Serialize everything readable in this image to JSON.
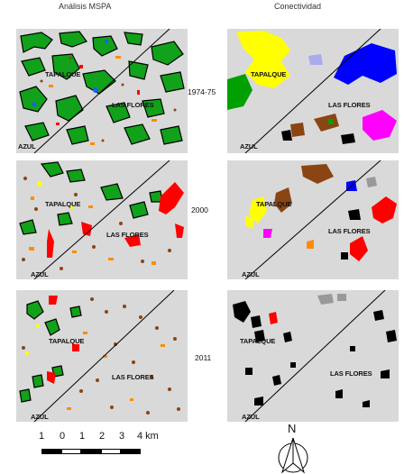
{
  "titles": {
    "left": "Análisis MSPA",
    "right": "Conectividad"
  },
  "years": [
    "1974-75",
    "2000",
    "2011"
  ],
  "towns": {
    "tapalque": "TAPALQUE",
    "las_flores": "LAS FLORES",
    "azul": "AZUL"
  },
  "scale_bar": {
    "labels": [
      "1",
      "0",
      "1",
      "2",
      "3",
      "4 km"
    ]
  },
  "north_arrow": {
    "label": "N"
  },
  "colors": {
    "background": "#d9d9d9",
    "core": "#11a11a",
    "edge": "#000000",
    "bridge": "#ff0000",
    "branch": "#ff8c00",
    "islet": "#8b4513",
    "perforation": "#1e5cff",
    "connectivity_components": [
      "#ffff00",
      "#0000ff",
      "#00a000",
      "#ff00ff",
      "#8b4513",
      "#000000",
      "#aaaaee",
      "#999999",
      "#ff0000"
    ]
  }
}
